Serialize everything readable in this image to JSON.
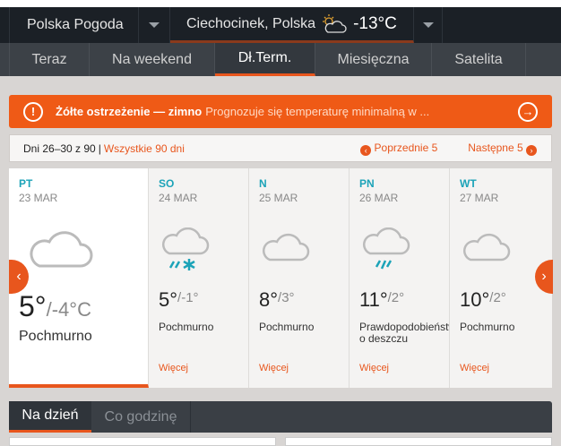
{
  "header": {
    "site": "Polska Pogoda",
    "location": "Ciechocinek, Polska",
    "current_temp": "-13°C",
    "weather_icon": "partly-cloudy-icon"
  },
  "nav": {
    "tabs": [
      {
        "label": "Teraz"
      },
      {
        "label": "Na weekend"
      },
      {
        "label": "Dł.Term.",
        "active": true
      },
      {
        "label": "Miesięczna"
      },
      {
        "label": "Satelita"
      }
    ]
  },
  "alert": {
    "title": "Żółte ostrzeżenie — zimno",
    "text": "Prognozuje się temperaturę minimalną w ...",
    "color": "#ef5a16"
  },
  "range": {
    "label": "Dni 26–30 z 90",
    "separator": "|",
    "all_link": "Wszystkie 90 dni",
    "prev": "Poprzednie 5",
    "next": "Następne 5"
  },
  "days": [
    {
      "dow": "PT",
      "date": "23 MAR",
      "high": "5°",
      "low": "/-4°C",
      "condition": "Pochmurno",
      "icon": "cloud-icon"
    },
    {
      "dow": "SO",
      "date": "24 MAR",
      "high": "5°",
      "low": "/-1°",
      "condition": "Pochmurno",
      "icon": "cloud-rain-snow-icon",
      "more": "Więcej"
    },
    {
      "dow": "N",
      "date": "25 MAR",
      "high": "8°",
      "low": "/3°",
      "condition": "Pochmurno",
      "icon": "cloud-icon",
      "more": "Więcej"
    },
    {
      "dow": "PN",
      "date": "26 MAR",
      "high": "11°",
      "low": "/2°",
      "condition": "Prawdopodobieństwo deszczu",
      "icon": "cloud-rain-icon",
      "more": "Więcej"
    },
    {
      "dow": "WT",
      "date": "27 MAR",
      "high": "10°",
      "low": "/2°",
      "condition": "Pochmurno",
      "icon": "cloud-icon",
      "more": "Więcej"
    }
  ],
  "bottom_tabs": [
    {
      "label": "Na dzień",
      "active": true
    },
    {
      "label": "Co godzinę"
    }
  ]
}
